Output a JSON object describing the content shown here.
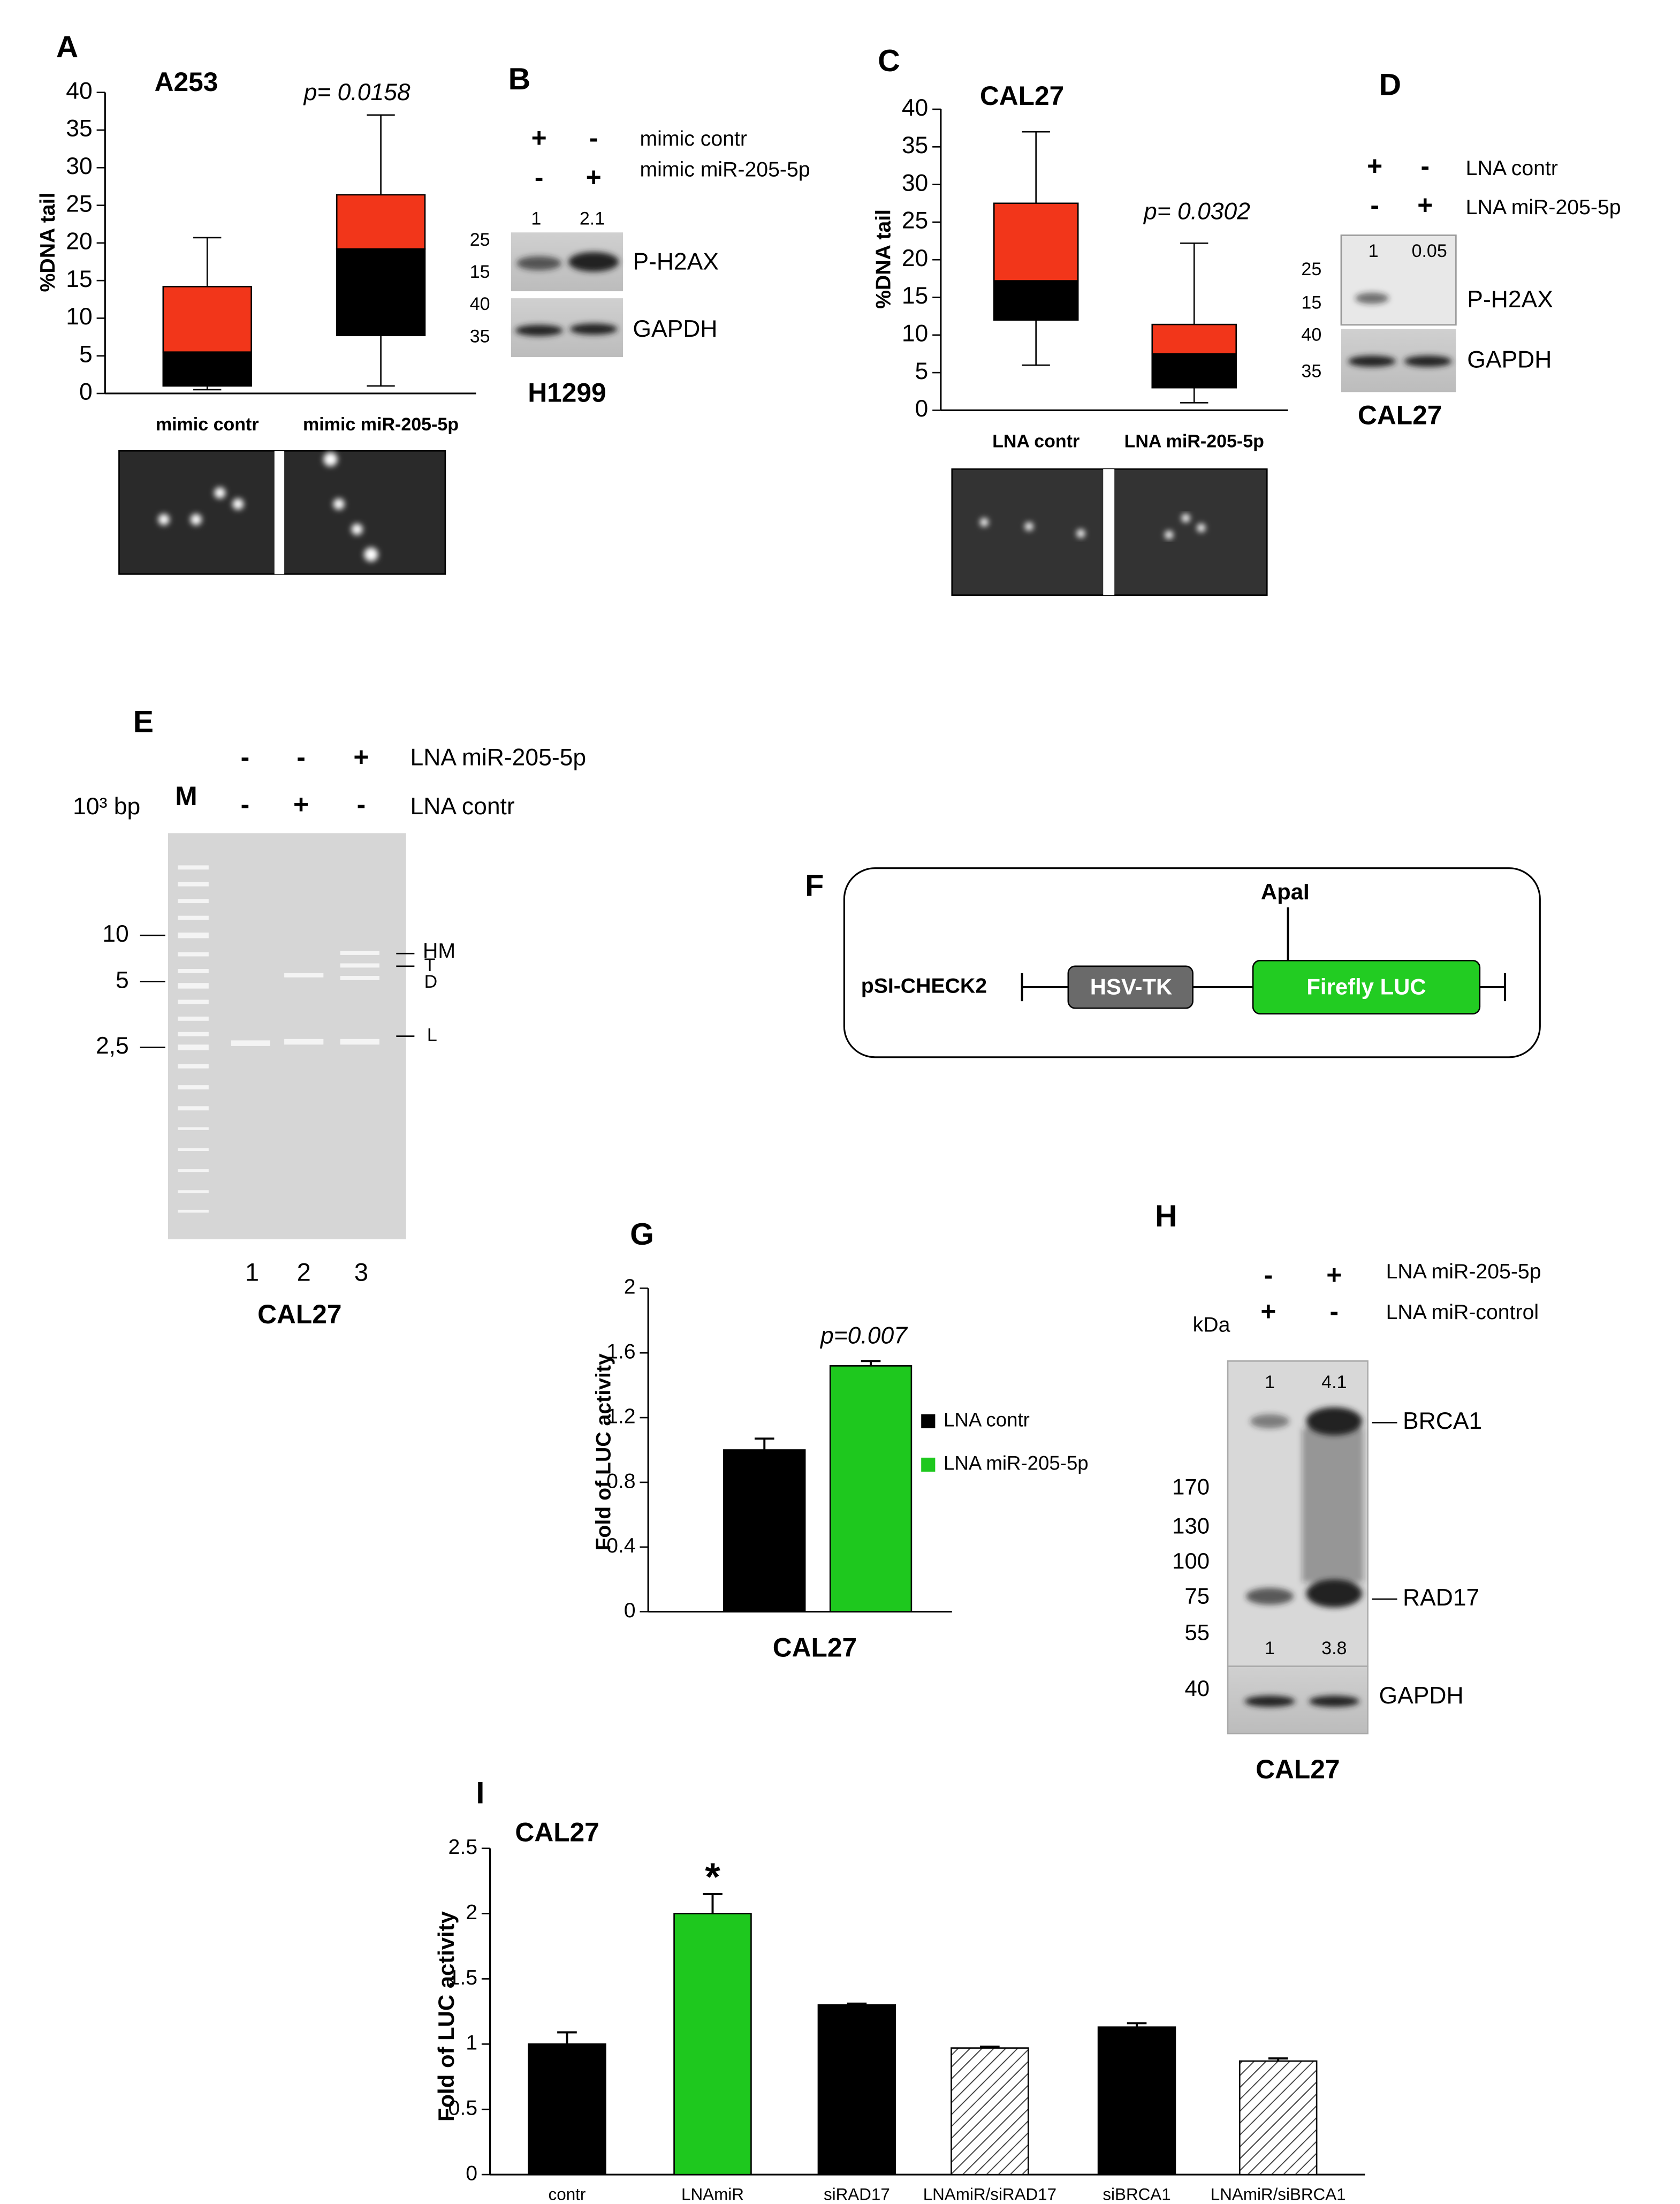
{
  "chart_data": [
    {
      "type": "box",
      "panel": "A",
      "title": "A253",
      "annotation": "p= 0.0158",
      "y_label": "%DNA tail",
      "categories": [
        "mimic contr",
        "mimic miR-205-5p"
      ],
      "low": [
        0.5,
        1
      ],
      "q1": [
        1,
        7.7
      ],
      "median": [
        5.5,
        19.2
      ],
      "q3": [
        14.2,
        26.4
      ],
      "high": [
        20.7,
        37
      ],
      "lower_color": "#000000",
      "upper_color": "#f2361a",
      "ylim": [
        0,
        40
      ],
      "yticks": [
        0,
        5,
        10,
        15,
        20,
        25,
        30,
        35,
        40
      ],
      "grid": false
    },
    {
      "type": "box",
      "panel": "C",
      "title": "CAL27",
      "annotation": "p= 0.0302",
      "y_label": "%DNA tail",
      "categories": [
        "LNA contr",
        "LNA miR-205-5p"
      ],
      "low": [
        6,
        1
      ],
      "q1": [
        12,
        3
      ],
      "median": [
        17.2,
        7.5
      ],
      "q3": [
        27.5,
        11.4
      ],
      "high": [
        37,
        22.2
      ],
      "lower_color": "#000000",
      "upper_color": "#f2361a",
      "ylim": [
        0,
        40
      ],
      "yticks": [
        0,
        5,
        10,
        15,
        20,
        25,
        30,
        35,
        40
      ],
      "grid": false
    },
    {
      "type": "bar",
      "panel": "G",
      "annotation": "p=0.007",
      "y_label": "Fold of LUC activity",
      "x_label": "CAL27",
      "series": [
        {
          "name": "LNA contr",
          "color": "#000000",
          "values": [
            1.0
          ],
          "errors": [
            0.07
          ]
        },
        {
          "name": "LNA miR-205-5p",
          "color": "#1ec81e",
          "values": [
            1.52
          ],
          "errors": [
            0.03
          ]
        }
      ],
      "ylim": [
        0,
        2
      ],
      "yticks": [
        0,
        0.4,
        0.8,
        1.2,
        1.6,
        2
      ],
      "legend": "right",
      "grid": false
    },
    {
      "type": "bar",
      "panel": "I",
      "title": "CAL27",
      "annotation": "*",
      "y_label": "Fold of LUC activity",
      "categories": [
        "contr",
        "LNAmiR",
        "siRAD17",
        "LNAmiR/siRAD17",
        "siBRCA1",
        "LNAmiR/siBRCA1"
      ],
      "values": [
        1.0,
        2.0,
        1.3,
        0.97,
        1.13,
        0.87
      ],
      "errors": [
        0.09,
        0.15,
        0.01,
        0.01,
        0.03,
        0.02
      ],
      "colors": [
        "#000000",
        "#1ec81e",
        "#000000",
        "#ffffff",
        "#000000",
        "#ffffff"
      ],
      "hatched": [
        false,
        false,
        false,
        true,
        false,
        true
      ],
      "ylim": [
        0,
        2.5
      ],
      "yticks": [
        0,
        0.5,
        1,
        1.5,
        2,
        2.5
      ],
      "grid": false
    }
  ],
  "panel_b": {
    "letter": "B",
    "rows": [
      {
        "label": "mimic contr",
        "signs": [
          "+",
          "-"
        ]
      },
      {
        "label": "mimic miR-205-5p",
        "signs": [
          "-",
          "+"
        ]
      }
    ],
    "quantification": [
      "1",
      "2.1"
    ],
    "markers": [
      "25",
      "15",
      "40",
      "35"
    ],
    "proteins": [
      "P-H2AX",
      "GAPDH"
    ],
    "cell_line": "H1299"
  },
  "panel_d": {
    "letter": "D",
    "rows": [
      {
        "label": "LNA contr",
        "signs": [
          "+",
          "-"
        ]
      },
      {
        "label": "LNA miR-205-5p",
        "signs": [
          "-",
          "+"
        ]
      }
    ],
    "quantification": [
      "1",
      "0.05"
    ],
    "markers": [
      "25",
      "15",
      "40",
      "35"
    ],
    "proteins": [
      "P-H2AX",
      "GAPDH"
    ],
    "cell_line": "CAL27"
  },
  "panel_e": {
    "letter": "E",
    "rows": [
      {
        "label": "LNA miR-205-5p",
        "signs": [
          "-",
          "-",
          "+"
        ]
      },
      {
        "label": "LNA contr",
        "signs": [
          "-",
          "+",
          "-"
        ]
      }
    ],
    "size_unit": "10³ bp",
    "marker_lane": "M",
    "markers": [
      "10",
      "5",
      "2,5"
    ],
    "bands": [
      "HM",
      "T",
      "D",
      "L"
    ],
    "lanes": [
      "1",
      "2",
      "3"
    ],
    "cell_line": "CAL27"
  },
  "panel_f": {
    "letter": "F",
    "site": "ApaI",
    "vector": "pSI-CHECK2",
    "promoter": "HSV-TK",
    "reporter": "Firefly LUC"
  },
  "panel_h": {
    "letter": "H",
    "rows": [
      {
        "label": "LNA miR-205-5p",
        "signs": [
          "-",
          "+"
        ]
      },
      {
        "label": "LNA miR-control",
        "signs": [
          "+",
          "-"
        ]
      }
    ],
    "unit": "kDa",
    "quantification_top": [
      "1",
      "4.1"
    ],
    "quantification_bottom": [
      "1",
      "3.8"
    ],
    "markers": [
      "170",
      "130",
      "100",
      "75",
      "55",
      "40"
    ],
    "proteins": [
      "BRCA1",
      "RAD17",
      "GAPDH"
    ],
    "cell_line": "CAL27"
  }
}
